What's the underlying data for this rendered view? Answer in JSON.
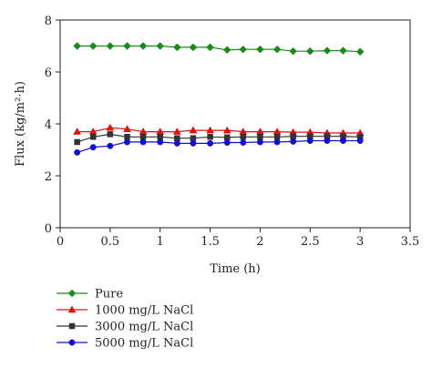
{
  "chart_data": {
    "type": "line",
    "xlabel": "Time (h)",
    "ylabel": "Flux (kg/m²·h)",
    "xlim": [
      0,
      3.5
    ],
    "ylim": [
      0,
      8
    ],
    "xticks": [
      0,
      0.5,
      1,
      1.5,
      2,
      2.5,
      3,
      3.5
    ],
    "yticks": [
      0,
      2,
      4,
      6,
      8
    ],
    "xtick_labels": [
      "0",
      "0.5",
      "1",
      "1.5",
      "2",
      "2.5",
      "3",
      "3.5"
    ],
    "ytick_labels": [
      "0",
      "2",
      "4",
      "6",
      "8"
    ],
    "grid": false,
    "legend_position": "bottom-left",
    "series": [
      {
        "name": "Pure",
        "color": "#1a8a1a",
        "marker": "diamond",
        "x": [
          0.17,
          0.33,
          0.5,
          0.67,
          0.83,
          1.0,
          1.17,
          1.33,
          1.5,
          1.67,
          1.83,
          2.0,
          2.17,
          2.33,
          2.5,
          2.67,
          2.83,
          3.0
        ],
        "y": [
          7.0,
          7.0,
          7.0,
          7.0,
          7.0,
          7.0,
          6.95,
          6.95,
          6.95,
          6.85,
          6.87,
          6.87,
          6.87,
          6.8,
          6.8,
          6.82,
          6.82,
          6.78
        ]
      },
      {
        "name": "1000 mg/L NaCl",
        "color": "#e01010",
        "marker": "triangle",
        "x": [
          0.17,
          0.33,
          0.5,
          0.67,
          0.83,
          1.0,
          1.17,
          1.33,
          1.5,
          1.67,
          1.83,
          2.0,
          2.17,
          2.33,
          2.5,
          2.67,
          2.83,
          3.0
        ],
        "y": [
          3.7,
          3.7,
          3.85,
          3.8,
          3.7,
          3.7,
          3.7,
          3.75,
          3.75,
          3.75,
          3.7,
          3.7,
          3.7,
          3.68,
          3.68,
          3.65,
          3.65,
          3.65
        ]
      },
      {
        "name": "3000 mg/L NaCl",
        "color": "#333333",
        "marker": "square",
        "x": [
          0.17,
          0.33,
          0.5,
          0.67,
          0.83,
          1.0,
          1.17,
          1.33,
          1.5,
          1.67,
          1.83,
          2.0,
          2.17,
          2.33,
          2.5,
          2.67,
          2.83,
          3.0
        ],
        "y": [
          3.3,
          3.5,
          3.6,
          3.5,
          3.5,
          3.5,
          3.45,
          3.45,
          3.5,
          3.48,
          3.5,
          3.5,
          3.5,
          3.52,
          3.52,
          3.52,
          3.52,
          3.5
        ]
      },
      {
        "name": "5000 mg/L NaCl",
        "color": "#1010d0",
        "marker": "circle",
        "x": [
          0.17,
          0.33,
          0.5,
          0.67,
          0.83,
          1.0,
          1.17,
          1.33,
          1.5,
          1.67,
          1.83,
          2.0,
          2.17,
          2.33,
          2.5,
          2.67,
          2.83,
          3.0
        ],
        "y": [
          2.9,
          3.1,
          3.15,
          3.3,
          3.3,
          3.3,
          3.25,
          3.25,
          3.25,
          3.28,
          3.28,
          3.3,
          3.3,
          3.32,
          3.35,
          3.35,
          3.35,
          3.35
        ]
      }
    ]
  }
}
